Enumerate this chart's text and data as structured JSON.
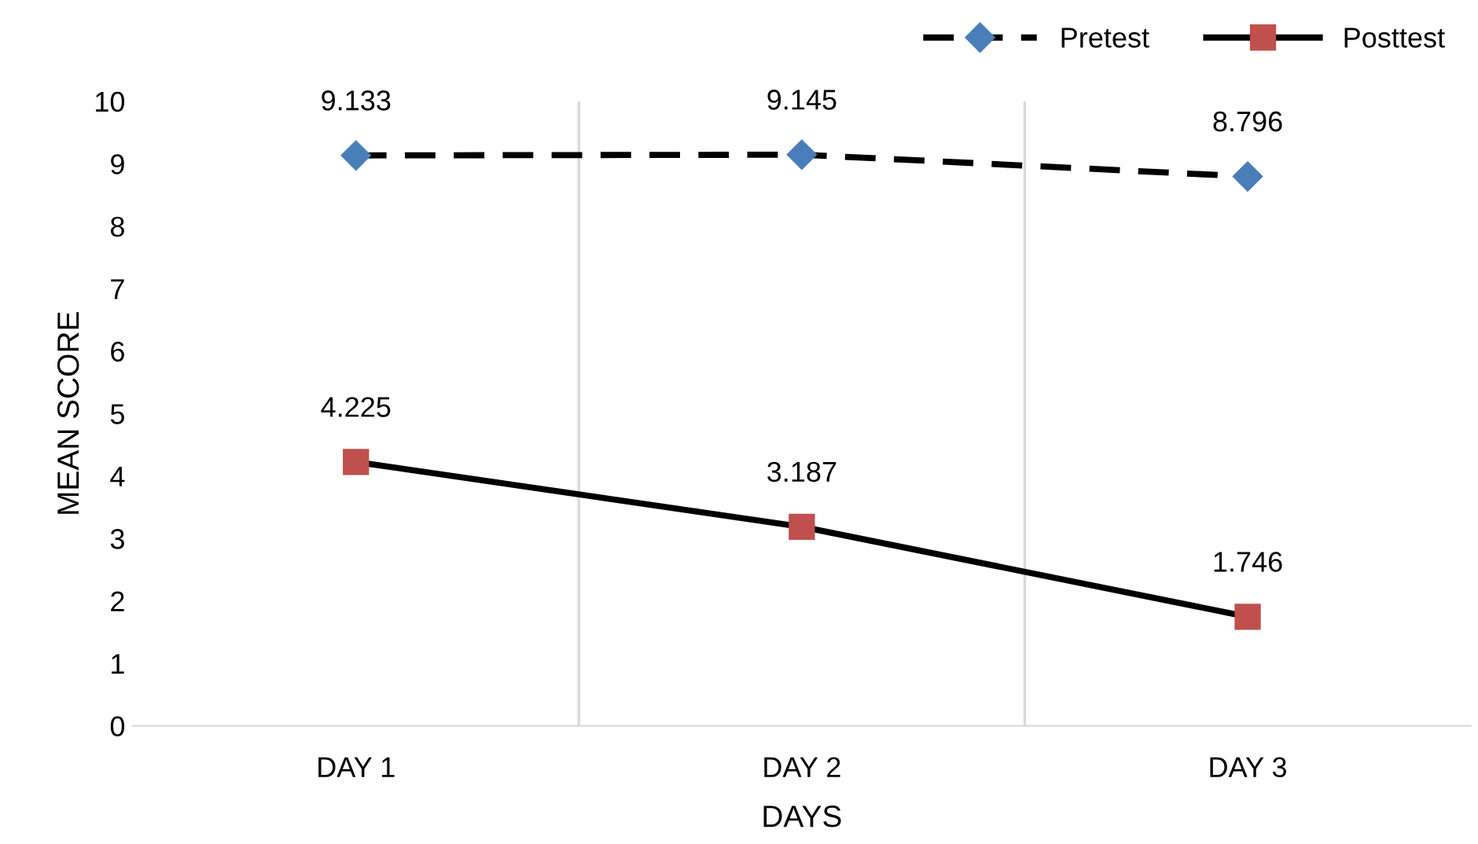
{
  "chart_data": {
    "type": "line",
    "xlabel": "DAYS",
    "ylabel": "MEAN SCORE",
    "categories": [
      "DAY 1",
      "DAY 2",
      "DAY 3"
    ],
    "series": [
      {
        "name": "Pretest",
        "color": "#4a7ebb",
        "values": [
          9.133,
          9.145,
          8.796
        ],
        "marker": "diamond",
        "line_style": "dashed"
      },
      {
        "name": "Posttest",
        "color": "#c0504d",
        "values": [
          4.225,
          3.187,
          1.746
        ],
        "marker": "square",
        "line_style": "solid"
      }
    ],
    "ylim": [
      0,
      10
    ],
    "yticks": [
      0,
      1,
      2,
      3,
      4,
      5,
      6,
      7,
      8,
      9,
      10
    ],
    "grid": "x",
    "legend": "top right",
    "data_labels": true
  }
}
